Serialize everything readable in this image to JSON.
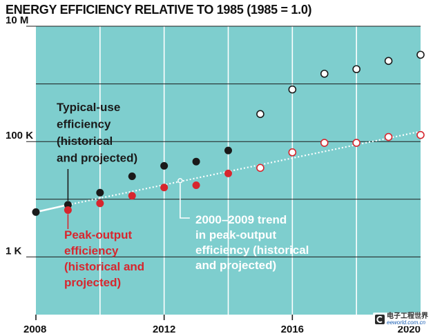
{
  "title": "ENERGY EFFICIENCY RELATIVE TO 1985 (1985 = 1.0)",
  "watermark": {
    "chinese": "电子工程世界",
    "url": "eeworld.com.cn"
  },
  "colors": {
    "plot_background": "#7ecece",
    "typical_use": "#1a1a1a",
    "peak_output": "#d7262e",
    "projected_fill": "#ffffff",
    "trend_line": "#ffffff",
    "gridline_major": "#1a1a1a",
    "gridline_minor": "#ffffff"
  },
  "chart_data": {
    "type": "scatter",
    "title": "ENERGY EFFICIENCY RELATIVE TO 1985 (1985 = 1.0)",
    "xlabel": "",
    "ylabel": "",
    "y_scale": "log",
    "xlim": [
      2008,
      2020
    ],
    "ylim": [
      100,
      10000000
    ],
    "grid": true,
    "x_ticks": [
      {
        "value": 2008,
        "label": "2008"
      },
      {
        "value": 2012,
        "label": "2012"
      },
      {
        "value": 2016,
        "label": "2016"
      },
      {
        "value": 2020,
        "label": "2020"
      }
    ],
    "x_minor_gridlines": [
      2010,
      2014,
      2018
    ],
    "y_ticks": [
      {
        "value": 1000,
        "label": "1 K"
      },
      {
        "value": 100000,
        "label": "100 K"
      },
      {
        "value": 10000000,
        "label": "10 M"
      }
    ],
    "y_gridlines": [
      10000,
      1000000
    ],
    "series": [
      {
        "x": [
          2008,
          2009,
          2010,
          2011,
          2012,
          2013,
          2014
        ],
        "y": [
          6000,
          8000,
          13000,
          25000,
          38000,
          45000,
          70000
        ],
        "marker": "filled",
        "color": "#1a1a1a"
      },
      {
        "x": [
          2015,
          2016,
          2017,
          2018,
          2019,
          2020
        ],
        "y": [
          300000,
          800000,
          1500000,
          1800000,
          2500000,
          3200000
        ],
        "marker": "open",
        "color": "#1a1a1a"
      },
      {
        "x": [
          2009,
          2010,
          2011,
          2012,
          2013,
          2014
        ],
        "y": [
          6500,
          8500,
          11500,
          16000,
          17500,
          28000
        ],
        "marker": "filled",
        "color": "#d7262e"
      },
      {
        "x": [
          2015,
          2016,
          2017,
          2018,
          2019,
          2020
        ],
        "y": [
          35000,
          65000,
          95000,
          95000,
          120000,
          130000
        ],
        "marker": "open",
        "color": "#d7262e"
      }
    ],
    "trend_line": {
      "solid": {
        "x": [
          2008,
          2009
        ],
        "y": [
          6000,
          8000
        ]
      },
      "dotted": {
        "x": [
          2009,
          2020
        ],
        "y": [
          8000,
          150000
        ]
      },
      "marker": {
        "x": 2012.5,
        "y": 21000
      }
    },
    "annotations": [
      {
        "id": "typical",
        "lines": [
          "Typical-use",
          "efficiency",
          "(historical",
          "and projected)"
        ],
        "color": "#1a1a1a"
      },
      {
        "id": "peak",
        "lines": [
          "Peak-output",
          "efficiency",
          "(historical and",
          "projected)"
        ],
        "color": "#d7262e"
      },
      {
        "id": "trend",
        "lines": [
          "2000–2009 trend",
          "in peak-output",
          "efficiency (historical",
          "and projected)"
        ],
        "color": "#ffffff"
      }
    ]
  }
}
